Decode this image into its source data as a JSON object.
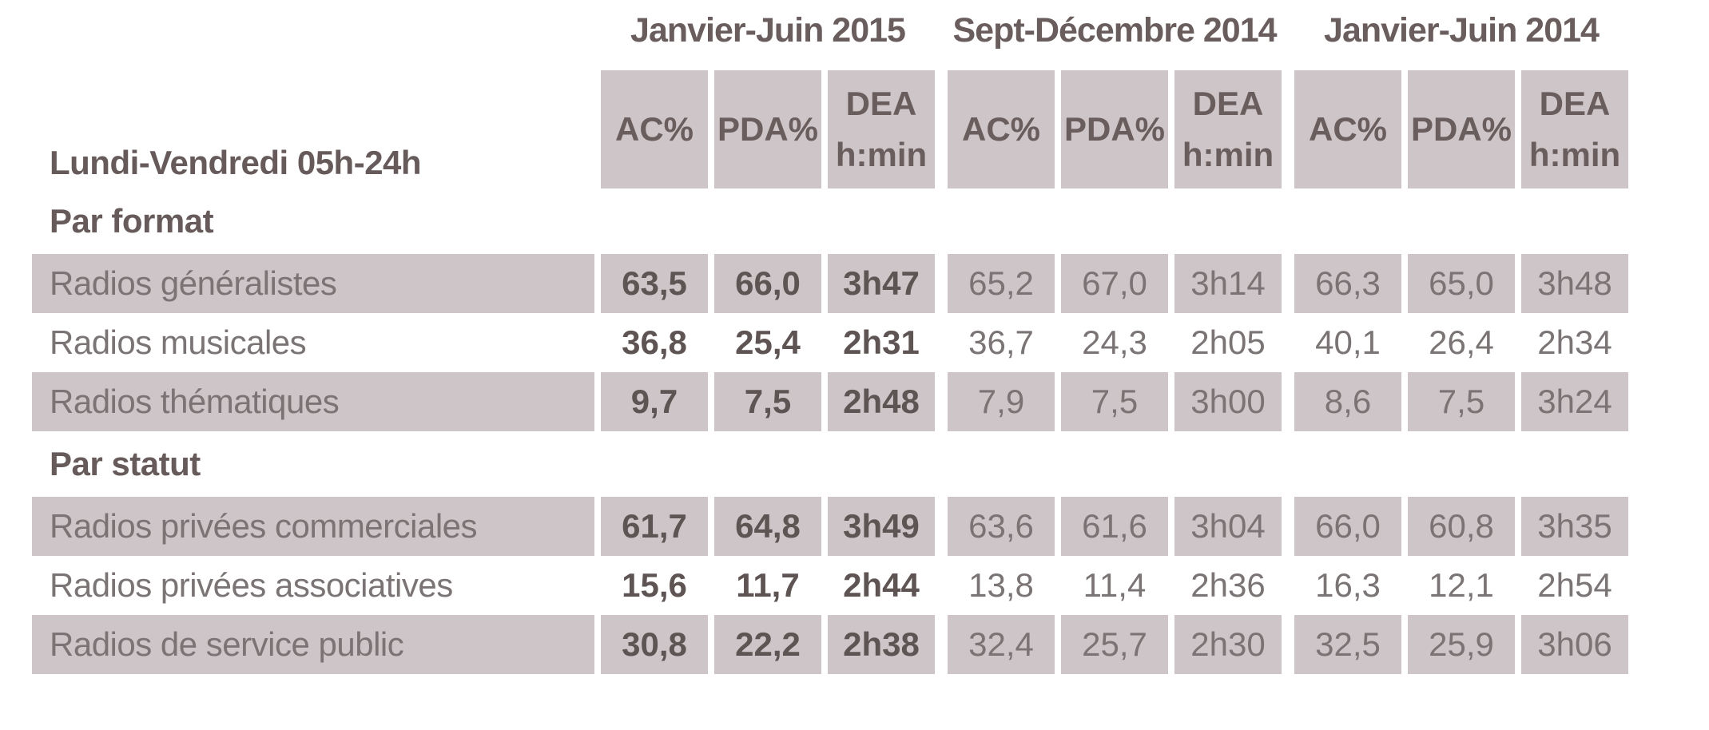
{
  "colors": {
    "page_background": "#ffffff",
    "cell_background": "#cdc5c7",
    "heading_text": "#6a5d5d",
    "regular_text": "#7b7474",
    "bold_value_text": "#5f5454"
  },
  "header": {
    "corner_label": "Lundi-Vendredi 05h-24h",
    "measures": {
      "ac": "AC%",
      "pda": "PDA%",
      "dea_line1": "DEA",
      "dea_line2": "h:min"
    }
  },
  "chart_data": {
    "type": "table",
    "title": "Lundi-Vendredi 05h-24h",
    "column_groups": [
      {
        "label": "Janvier-Juin 2015"
      },
      {
        "label": "Sept-Décembre 2014"
      },
      {
        "label": "Janvier-Juin 2014"
      }
    ],
    "columns_per_group": [
      "AC%",
      "PDA%",
      "DEA h:min"
    ],
    "layout_hint": "first group values bold; rows alternate shaded/white per section",
    "sections": [
      {
        "title": "Par format",
        "rows": [
          {
            "label": "Radios généralistes",
            "values": [
              "63,5",
              "66,0",
              "3h47",
              "65,2",
              "67,0",
              "3h14",
              "66,3",
              "65,0",
              "3h48"
            ]
          },
          {
            "label": "Radios musicales",
            "values": [
              "36,8",
              "25,4",
              "2h31",
              "36,7",
              "24,3",
              "2h05",
              "40,1",
              "26,4",
              "2h34"
            ]
          },
          {
            "label": "Radios thématiques",
            "values": [
              "9,7",
              "7,5",
              "2h48",
              "7,9",
              "7,5",
              "3h00",
              "8,6",
              "7,5",
              "3h24"
            ]
          }
        ]
      },
      {
        "title": "Par statut",
        "rows": [
          {
            "label": "Radios privées commerciales",
            "values": [
              "61,7",
              "64,8",
              "3h49",
              "63,6",
              "61,6",
              "3h04",
              "66,0",
              "60,8",
              "3h35"
            ]
          },
          {
            "label": "Radios privées associatives",
            "values": [
              "15,6",
              "11,7",
              "2h44",
              "13,8",
              "11,4",
              "2h36",
              "16,3",
              "12,1",
              "2h54"
            ]
          },
          {
            "label": "Radios de service public",
            "values": [
              "30,8",
              "22,2",
              "2h38",
              "32,4",
              "25,7",
              "2h30",
              "32,5",
              "25,9",
              "3h06"
            ]
          }
        ]
      }
    ]
  }
}
